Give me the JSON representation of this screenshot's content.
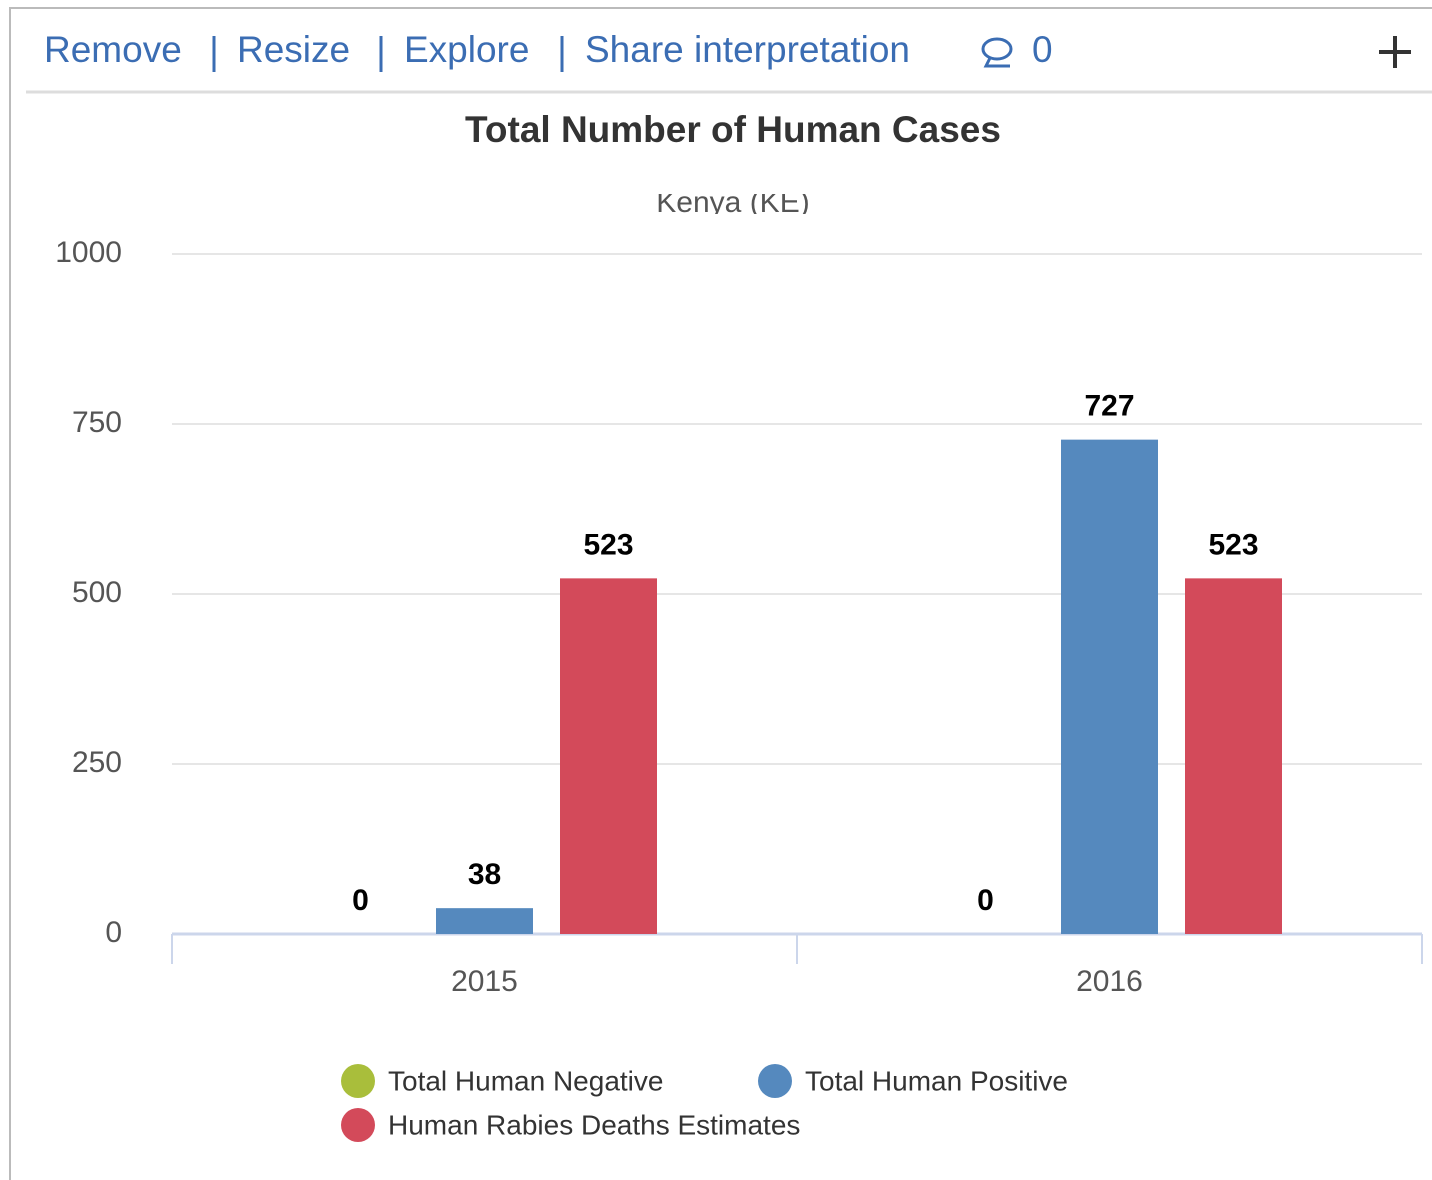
{
  "toolbar": {
    "actions": [
      "Remove",
      "Resize",
      "Explore",
      "Share interpretation"
    ],
    "comments": 0
  },
  "chart_data": {
    "type": "bar",
    "title": "Total Number of Human Cases",
    "subtitle": "Kenya (KE)",
    "categories": [
      "2015",
      "2016"
    ],
    "series": [
      {
        "name": "Total Human Negative",
        "color": "#a9be3b",
        "values": [
          0,
          0
        ]
      },
      {
        "name": "Total Human Positive",
        "color": "#5589be",
        "values": [
          38,
          727
        ]
      },
      {
        "name": "Human Rabies Deaths Estimates",
        "color": "#d34a5a",
        "values": [
          523,
          523
        ]
      }
    ],
    "ylim": [
      0,
      1000
    ],
    "yticks": [
      0,
      250,
      500,
      750,
      1000
    ],
    "grid": true
  }
}
